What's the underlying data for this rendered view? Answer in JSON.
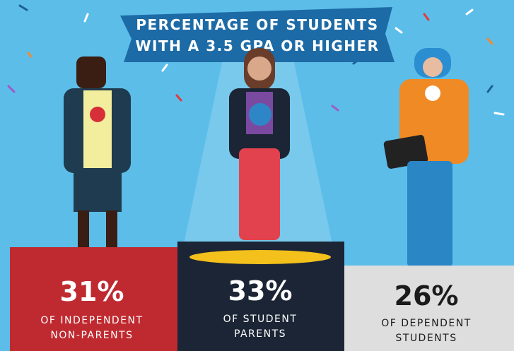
{
  "title": {
    "lines": [
      "PERCENTAGE OF STUDENTS",
      "WITH A 3.5 GPA OR HIGHER"
    ]
  },
  "podiums": [
    {
      "value": "31%",
      "label_lines": [
        "OF INDEPENDENT",
        "NON-PARENTS"
      ]
    },
    {
      "value": "33%",
      "label_lines": [
        "OF STUDENT",
        "PARENTS"
      ]
    },
    {
      "value": "26%",
      "label_lines": [
        "OF DEPENDENT",
        "STUDENTS"
      ]
    }
  ]
}
